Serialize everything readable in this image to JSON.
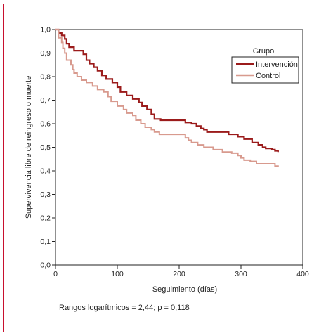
{
  "chart_data": {
    "type": "line",
    "ylabel": "Supervivencia libre de reingreso o muerte",
    "xlabel": "Seguimiento (días)",
    "xlim": [
      0,
      400
    ],
    "ylim": [
      0,
      1
    ],
    "x_ticks": [
      0,
      100,
      200,
      300,
      400
    ],
    "x_tick_labels": [
      "0",
      "100",
      "200",
      "300",
      "400"
    ],
    "y_ticks": [
      0,
      0.1,
      0.2,
      0.3,
      0.4,
      0.5,
      0.6,
      0.7,
      0.8,
      0.9,
      1.0
    ],
    "y_tick_labels": [
      "0,0",
      "0,1",
      "0,2",
      "0,3",
      "0,4",
      "0,5",
      "0,6",
      "0,7",
      "0,8",
      "0,9",
      "1,0"
    ],
    "grid": false,
    "legend": {
      "title": "Grupo",
      "position": "top-right"
    },
    "series": [
      {
        "name": "Intervención",
        "color": "#9b1b1b",
        "step": true,
        "points": [
          [
            0,
            1.0
          ],
          [
            5,
            0.985
          ],
          [
            10,
            0.975
          ],
          [
            15,
            0.96
          ],
          [
            18,
            0.94
          ],
          [
            22,
            0.925
          ],
          [
            30,
            0.91
          ],
          [
            45,
            0.895
          ],
          [
            50,
            0.87
          ],
          [
            55,
            0.855
          ],
          [
            62,
            0.84
          ],
          [
            68,
            0.825
          ],
          [
            75,
            0.805
          ],
          [
            82,
            0.79
          ],
          [
            92,
            0.775
          ],
          [
            100,
            0.755
          ],
          [
            105,
            0.735
          ],
          [
            115,
            0.72
          ],
          [
            125,
            0.705
          ],
          [
            135,
            0.69
          ],
          [
            140,
            0.675
          ],
          [
            148,
            0.66
          ],
          [
            155,
            0.64
          ],
          [
            160,
            0.62
          ],
          [
            170,
            0.615
          ],
          [
            205,
            0.615
          ],
          [
            210,
            0.605
          ],
          [
            220,
            0.6
          ],
          [
            228,
            0.59
          ],
          [
            235,
            0.58
          ],
          [
            240,
            0.575
          ],
          [
            245,
            0.565
          ],
          [
            275,
            0.565
          ],
          [
            280,
            0.555
          ],
          [
            295,
            0.545
          ],
          [
            305,
            0.535
          ],
          [
            318,
            0.52
          ],
          [
            328,
            0.51
          ],
          [
            335,
            0.5
          ],
          [
            340,
            0.495
          ],
          [
            350,
            0.49
          ],
          [
            355,
            0.485
          ],
          [
            360,
            0.48
          ]
        ]
      },
      {
        "name": "Control",
        "color": "#d89a8e",
        "step": true,
        "points": [
          [
            0,
            1.0
          ],
          [
            5,
            0.965
          ],
          [
            10,
            0.945
          ],
          [
            12,
            0.92
          ],
          [
            15,
            0.9
          ],
          [
            18,
            0.87
          ],
          [
            25,
            0.85
          ],
          [
            28,
            0.83
          ],
          [
            30,
            0.815
          ],
          [
            35,
            0.8
          ],
          [
            42,
            0.785
          ],
          [
            50,
            0.775
          ],
          [
            60,
            0.76
          ],
          [
            68,
            0.745
          ],
          [
            78,
            0.735
          ],
          [
            85,
            0.715
          ],
          [
            90,
            0.695
          ],
          [
            100,
            0.675
          ],
          [
            110,
            0.66
          ],
          [
            115,
            0.645
          ],
          [
            125,
            0.635
          ],
          [
            130,
            0.615
          ],
          [
            138,
            0.6
          ],
          [
            145,
            0.585
          ],
          [
            155,
            0.575
          ],
          [
            160,
            0.565
          ],
          [
            168,
            0.555
          ],
          [
            205,
            0.555
          ],
          [
            210,
            0.54
          ],
          [
            215,
            0.53
          ],
          [
            220,
            0.52
          ],
          [
            230,
            0.51
          ],
          [
            240,
            0.5
          ],
          [
            255,
            0.49
          ],
          [
            270,
            0.48
          ],
          [
            285,
            0.475
          ],
          [
            295,
            0.465
          ],
          [
            300,
            0.455
          ],
          [
            305,
            0.445
          ],
          [
            315,
            0.44
          ],
          [
            325,
            0.43
          ],
          [
            350,
            0.43
          ],
          [
            355,
            0.42
          ],
          [
            360,
            0.415
          ]
        ]
      }
    ],
    "annotation": "Rangos logarítmicos = 2,44; p = 0,118"
  }
}
